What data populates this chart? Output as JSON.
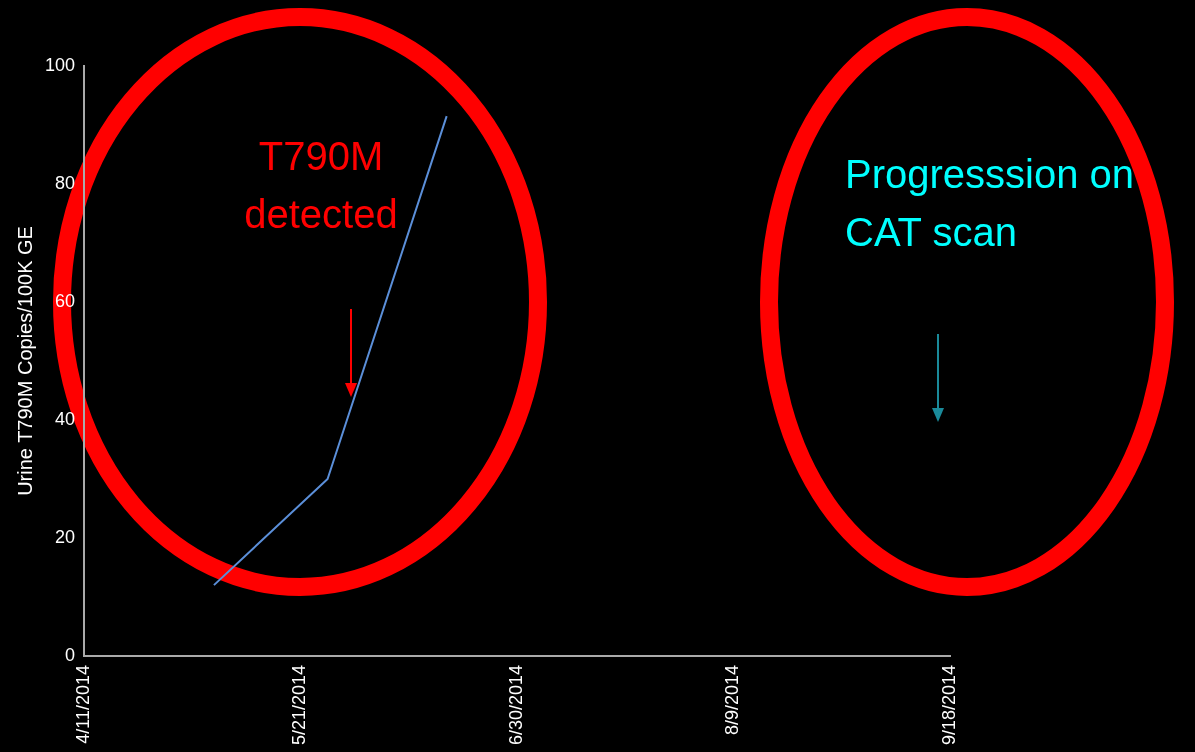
{
  "chart_data": {
    "type": "line",
    "ylabel": "Urine T790M Copies/100K GE",
    "x": [
      "2014-05-05",
      "2014-05-26",
      "2014-06-17"
    ],
    "series": [
      {
        "color": "#5b8fd9",
        "values": [
          12,
          30,
          91.5
        ]
      }
    ],
    "xlim": [
      "2014-04-11",
      "2014-09-18"
    ],
    "xticks": [
      {
        "value": "2014-04-11",
        "label": "4/11/2014"
      },
      {
        "value": "2014-05-21",
        "label": "5/21/2014"
      },
      {
        "value": "2014-06-30",
        "label": "6/30/2014"
      },
      {
        "value": "2014-08-09",
        "label": "8/9/2014"
      },
      {
        "value": "2014-09-18",
        "label": "9/18/2014"
      }
    ],
    "ylim": [
      0,
      100
    ],
    "yticks": [
      0,
      20,
      40,
      60,
      80,
      100
    ],
    "grid": false,
    "legend": false,
    "marker": "none",
    "line_style": "solid",
    "annotations": [
      "T790M detected",
      "Progresssion on CAT scan"
    ]
  }
}
